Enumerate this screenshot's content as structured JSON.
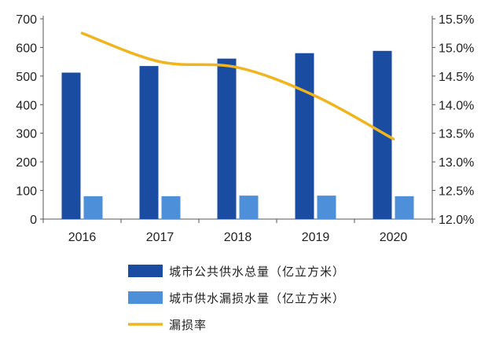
{
  "chart_data": {
    "type": "bar",
    "categories": [
      "2016",
      "2017",
      "2018",
      "2019",
      "2020"
    ],
    "series": [
      {
        "name": "城市公共供水总量（亿立方米）",
        "kind": "bar",
        "axis": "left",
        "color": "#1a4da2",
        "values": [
          512,
          535,
          561,
          580,
          588
        ]
      },
      {
        "name": "城市供水漏损水量（亿立方米）",
        "kind": "bar",
        "axis": "left",
        "color": "#4d8fd8",
        "values": [
          80,
          80,
          82,
          82,
          80
        ]
      },
      {
        "name": "漏损率",
        "kind": "line",
        "axis": "right",
        "color": "#f0b41e",
        "values": [
          15.25,
          14.75,
          14.65,
          14.15,
          13.4
        ]
      }
    ],
    "left_axis": {
      "ylim": [
        0,
        700
      ],
      "ticks": [
        "0",
        "100",
        "200",
        "300",
        "400",
        "500",
        "600",
        "700"
      ]
    },
    "right_axis": {
      "ylim": [
        12.0,
        15.5
      ],
      "ticks": [
        "12.0%",
        "12.5%",
        "13.0%",
        "13.5%",
        "14.0%",
        "14.5%",
        "15.0%",
        "15.5%"
      ]
    },
    "grid": false,
    "legend_position": "bottom"
  }
}
